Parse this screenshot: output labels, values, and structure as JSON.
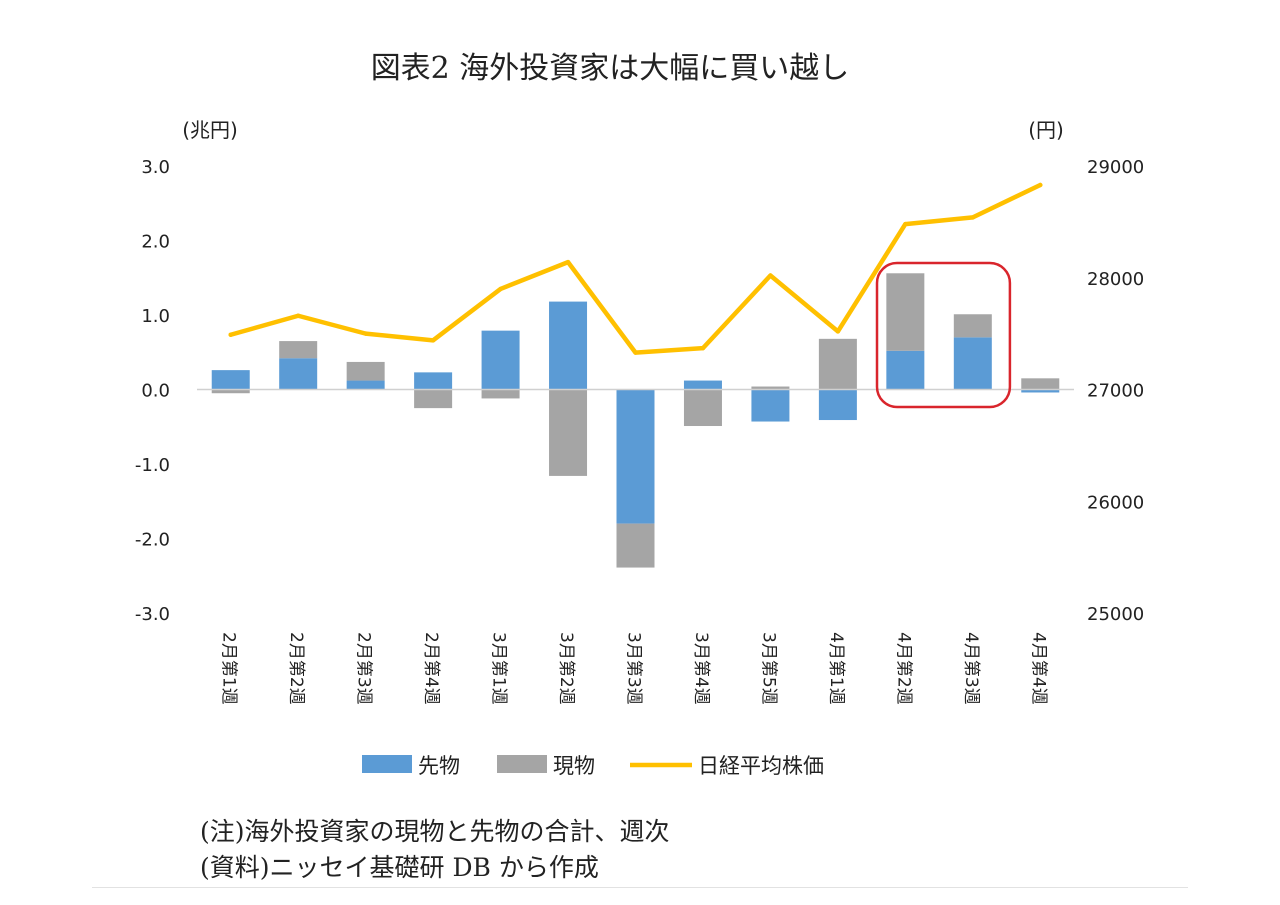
{
  "chart_data": {
    "type": "bar",
    "title": "図表2 海外投資家は大幅に買い越し",
    "left_unit": "(兆円)",
    "right_unit": "(円)",
    "categories": [
      "2月第1週",
      "2月第2週",
      "2月第3週",
      "2月第4週",
      "3月第1週",
      "3月第2週",
      "3月第3週",
      "3月第4週",
      "3月第5週",
      "4月第1週",
      "4月第2週",
      "4月第3週",
      "4月第4週"
    ],
    "series": [
      {
        "name": "先物",
        "type": "bar",
        "axis": "left",
        "color": "#5B9BD5",
        "values": [
          0.26,
          0.42,
          0.12,
          0.23,
          0.79,
          1.18,
          -1.8,
          0.12,
          -0.43,
          -0.41,
          0.52,
          0.7,
          -0.04
        ]
      },
      {
        "name": "現物",
        "type": "bar",
        "axis": "left",
        "color": "#A5A5A5",
        "values": [
          -0.05,
          0.23,
          0.25,
          -0.25,
          -0.12,
          -1.16,
          -0.59,
          -0.49,
          0.04,
          0.68,
          1.04,
          0.31,
          0.15
        ]
      },
      {
        "name": "日経平均株価",
        "type": "line",
        "axis": "right",
        "color": "#FFC000",
        "values": [
          27490,
          27660,
          27500,
          27440,
          27900,
          28140,
          27330,
          27370,
          28020,
          27520,
          28480,
          28540,
          28830
        ]
      }
    ],
    "left_axis": {
      "min": -3.0,
      "max": 3.0,
      "ticks": [
        "3.0",
        "2.0",
        "1.0",
        "0.0",
        "-1.0",
        "-2.0",
        "-3.0"
      ]
    },
    "right_axis": {
      "min": 25000,
      "max": 29000,
      "ticks": [
        "29000",
        "28000",
        "27000",
        "26000",
        "25000"
      ]
    },
    "highlight": {
      "categories": [
        "4月第2週",
        "4月第3週"
      ],
      "color": "#D9252C"
    },
    "legend": {
      "position": "bottom"
    }
  },
  "notes": {
    "note": "(注)海外投資家の現物と先物の合計、週次",
    "source": "(資料)ニッセイ基礎研 DB から作成"
  }
}
